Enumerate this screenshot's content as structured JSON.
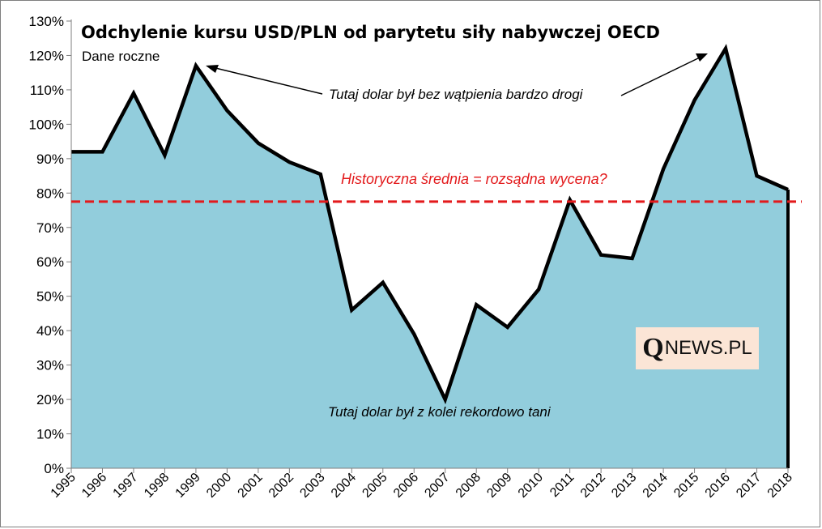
{
  "chart_data": {
    "type": "area",
    "title": "Odchylenie kursu USD/PLN od parytetu siły nabywczej OECD",
    "subtitle": "Dane roczne",
    "categories": [
      "1995",
      "1996",
      "1997",
      "1998",
      "1999",
      "2000",
      "2001",
      "2002",
      "2003",
      "2004",
      "2005",
      "2006",
      "2007",
      "2008",
      "2009",
      "2010",
      "2011",
      "2012",
      "2013",
      "2014",
      "2015",
      "2016",
      "2017",
      "2018"
    ],
    "series": [
      {
        "values": [
          92,
          92,
          109,
          91,
          117,
          104,
          94.5,
          89,
          85.5,
          46,
          54,
          39,
          20,
          47.5,
          41,
          52,
          78,
          62,
          61,
          87,
          107,
          122,
          85,
          81
        ]
      }
    ],
    "y_ticks": [
      "0%",
      "10%",
      "20%",
      "30%",
      "40%",
      "50%",
      "60%",
      "70%",
      "80%",
      "90%",
      "100%",
      "110%",
      "120%",
      "130%"
    ],
    "ylim": [
      0,
      130
    ],
    "average_line": 77.5,
    "annotations": {
      "expensive": "Tutaj dolar był bez wątpienia bardzo drogi",
      "cheap": "Tutaj dolar był z kolei rekordowo tani",
      "average": "Historyczna średnia = rozsądna wycena?"
    },
    "colors": {
      "area_fill": "#92cddc",
      "line": "#000000",
      "average_line": "#e31a1c"
    }
  },
  "logo": {
    "q": "Q",
    "rest": "NEWS.PL"
  }
}
